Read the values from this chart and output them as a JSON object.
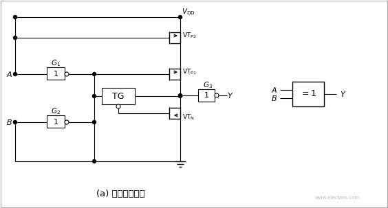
{
  "bg_color": "#ffffff",
  "line_color": "#000000",
  "title": "(a) 异或门电路图",
  "title_fontsize": 9,
  "fig_width": 5.64,
  "fig_height": 3.03
}
